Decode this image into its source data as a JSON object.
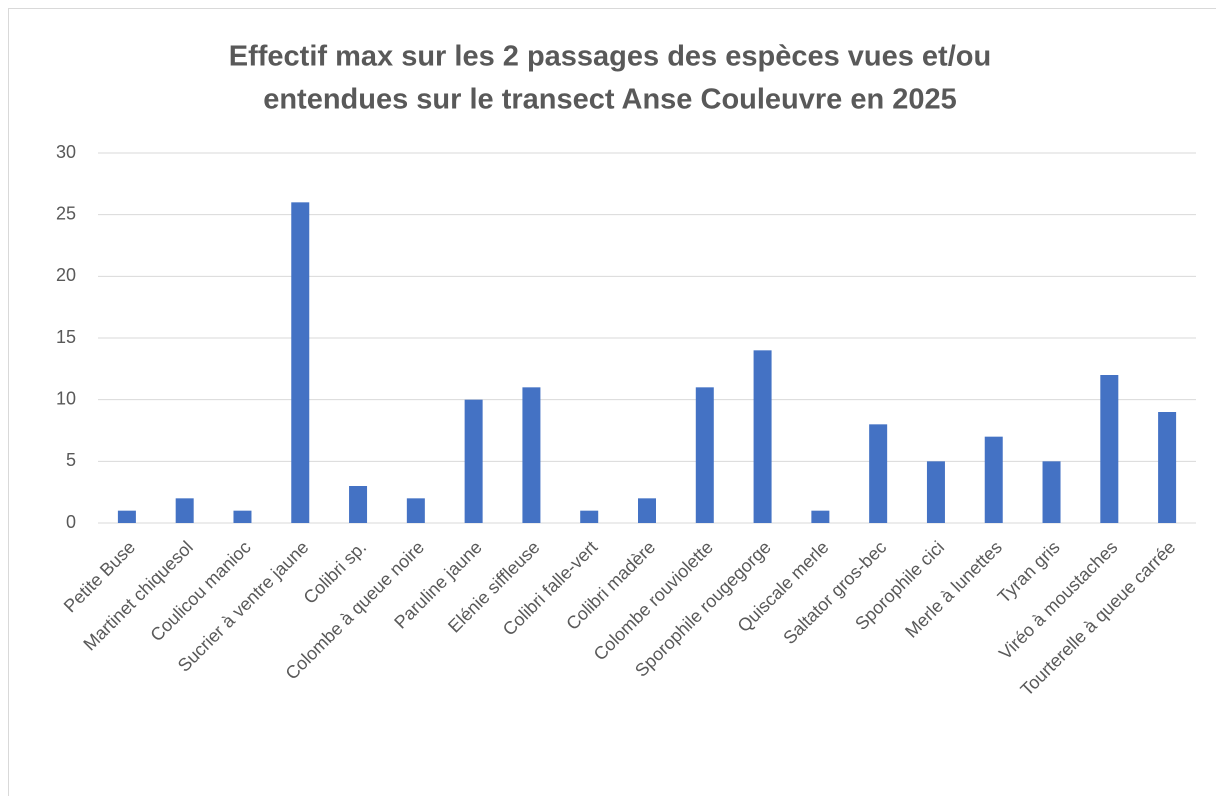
{
  "chart_data": {
    "type": "bar",
    "title": [
      "Effectif max sur les 2 passages des espèces vues et/ou",
      "entendues sur le transect  Anse Couleuvre en 2025"
    ],
    "categories": [
      "Petite Buse",
      "Martinet chiquesol",
      "Coulicou manioc",
      "Sucrier à ventre jaune",
      "Colibri sp.",
      "Colombe à queue noire",
      "Paruline jaune",
      "Elénie siffleuse",
      "Colibri falle-vert",
      "Colibri madère",
      "Colombe rouviolette",
      "Sporophile rougegorge",
      "Quiscale merle",
      "Saltator gros-bec",
      "Sporophile cici",
      "Merle à lunettes",
      "Tyran gris",
      "Viréo à moustaches",
      "Tourterelle à queue carrée"
    ],
    "values": [
      1,
      2,
      1,
      26,
      3,
      2,
      10,
      11,
      1,
      2,
      11,
      14,
      1,
      8,
      5,
      7,
      5,
      12,
      9
    ],
    "color": "#4472c4",
    "ylim": [
      0,
      30
    ],
    "yticks": [
      0,
      5,
      10,
      15,
      20,
      25,
      30
    ],
    "grid": true
  }
}
